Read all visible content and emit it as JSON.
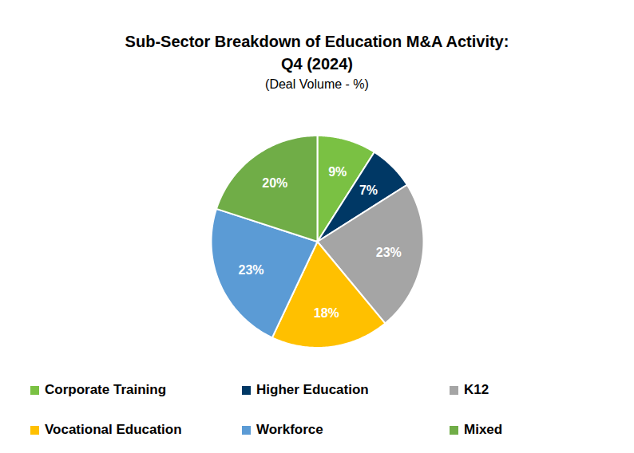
{
  "chart_data": {
    "type": "pie",
    "title": "Sub-Sector Breakdown of Education M&A Activity:\nQ4 (2024)",
    "subtitle": "(Deal Volume - %)",
    "categories": [
      "Corporate Training",
      "Higher Education",
      "K12",
      "Vocational Education",
      "Workforce",
      "Mixed"
    ],
    "values": [
      9,
      7,
      23,
      18,
      23,
      20
    ],
    "value_labels": [
      "9%",
      "7%",
      "23%",
      "18%",
      "23%",
      "20%"
    ],
    "colors": [
      "#7ac143",
      "#003865",
      "#a5a5a5",
      "#ffc000",
      "#5b9bd5",
      "#70ad47"
    ],
    "data_labels": true,
    "legend": "bottom"
  }
}
